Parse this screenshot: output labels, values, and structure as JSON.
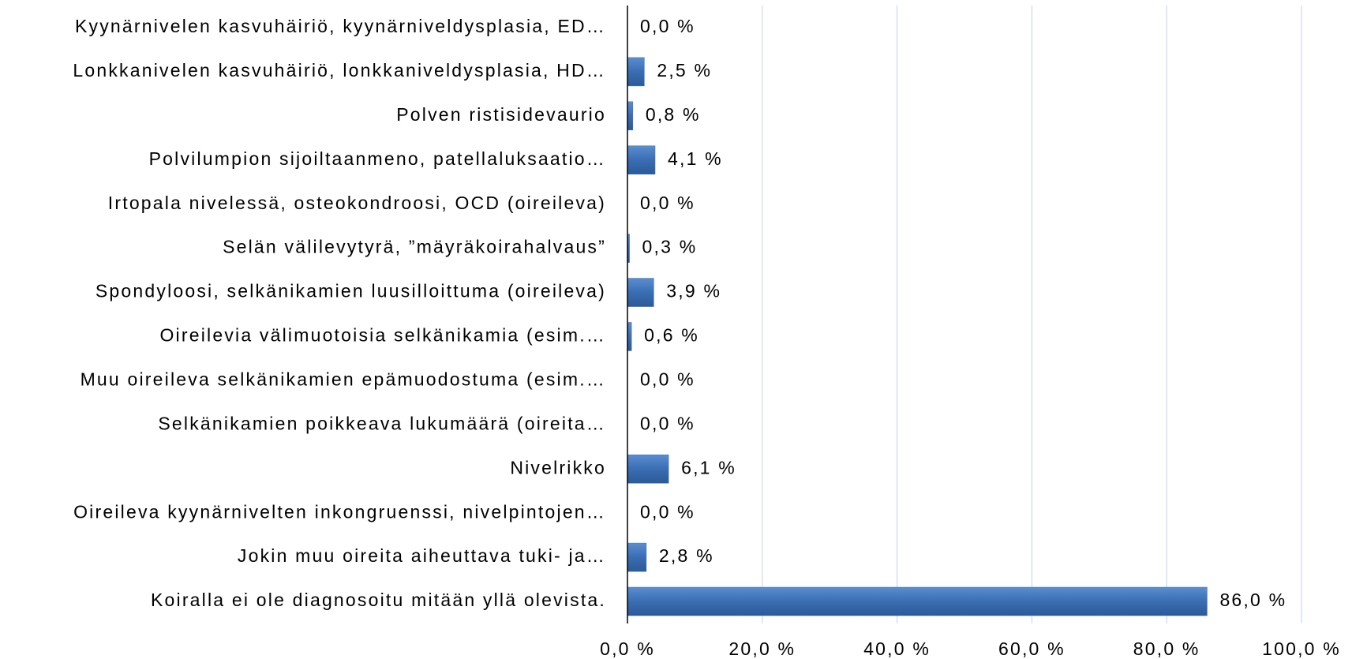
{
  "chart_data": {
    "type": "bar",
    "orientation": "horizontal",
    "categories": [
      "Kyynärnivelen kasvuhäiriö, kyynärniveldysplasia, ED…",
      "Lonkkanivelen kasvuhäiriö, lonkkaniveldysplasia, HD…",
      "Polven ristisidevaurio",
      "Polvilumpion sijoiltaanmeno, patellaluksaatio…",
      "Irtopala nivelessä, osteokondroosi, OCD (oireileva)",
      "Selän välilevytyrä, ”mäyräkoirahalvaus”",
      "Spondyloosi, selkänikamien luusilloittuma (oireileva)",
      "Oireilevia välimuotoisia selkänikamia (esim.…",
      "Muu oireileva selkänikamien epämuodostuma (esim.…",
      "Selkänikamien poikkeava lukumäärä (oireita…",
      "Nivelrikko",
      "Oireileva kyynärnivelten inkongruenssi, nivelpintojen…",
      "Jokin muu oireita aiheuttava tuki- ja…",
      "Koiralla ei ole diagnosoitu mitään yllä olevista."
    ],
    "values": [
      0.0,
      2.5,
      0.8,
      4.1,
      0.0,
      0.3,
      3.9,
      0.6,
      0.0,
      0.0,
      6.1,
      0.0,
      2.8,
      86.0
    ],
    "value_labels": [
      "0,0 %",
      "2,5 %",
      "0,8 %",
      "4,1 %",
      "0,0 %",
      "0,3 %",
      "3,9 %",
      "0,6 %",
      "0,0 %",
      "0,0 %",
      "6,1 %",
      "0,0 %",
      "2,8 %",
      "86,0 %"
    ],
    "color": "#3a6db3",
    "xlim": [
      0,
      100
    ],
    "xticks": [
      {
        "value": 0,
        "label": "0,0 %"
      },
      {
        "value": 20,
        "label": "20,0 %"
      },
      {
        "value": 40,
        "label": "40,0 %"
      },
      {
        "value": 60,
        "label": "60,0 %"
      },
      {
        "value": 80,
        "label": "80,0 %"
      },
      {
        "value": 100,
        "label": "100,0 %"
      }
    ],
    "grid": true
  }
}
